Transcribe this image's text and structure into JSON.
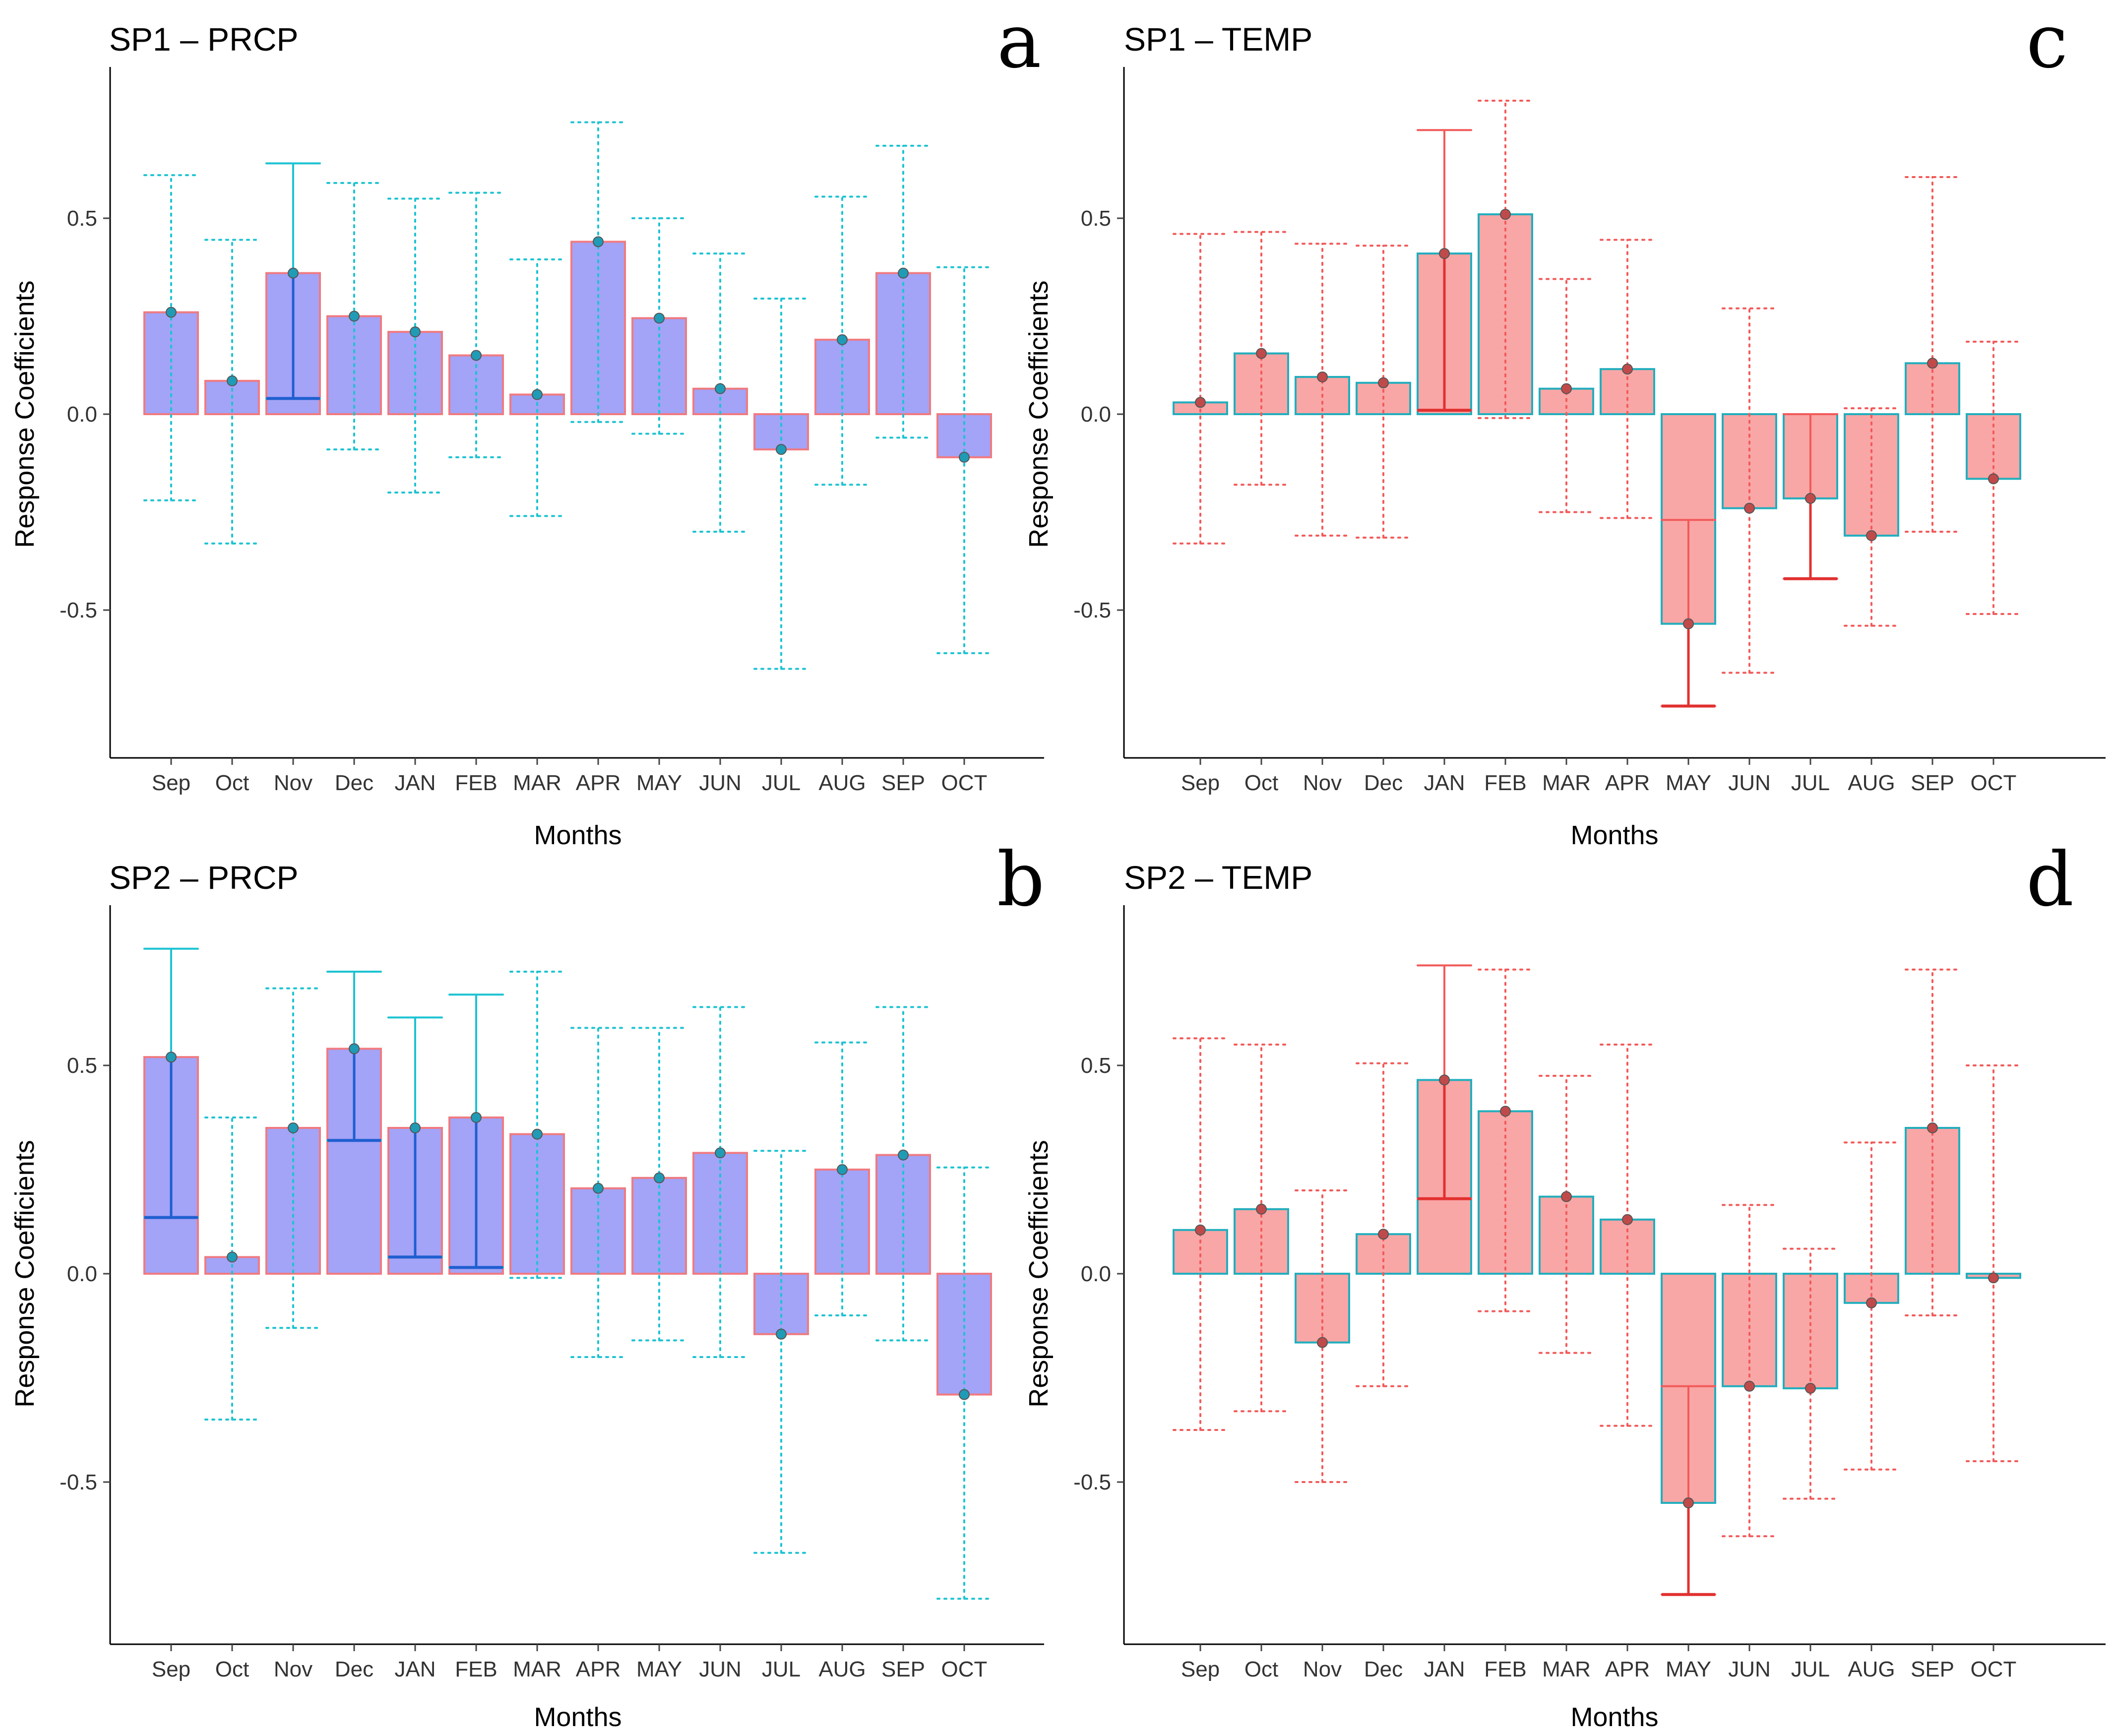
{
  "chart_data": [
    {
      "panel": "a",
      "type": "bar",
      "title": "SP1 – PRCP",
      "xlabel": "Months",
      "ylabel": "Response Coefficients",
      "categories": [
        "Sep",
        "Oct",
        "Nov",
        "Dec",
        "JAN",
        "FEB",
        "MAR",
        "APR",
        "MAY",
        "JUN",
        "JUL",
        "AUG",
        "SEP",
        "OCT"
      ],
      "values": [
        0.26,
        0.085,
        0.36,
        0.25,
        0.21,
        0.15,
        0.05,
        0.44,
        0.245,
        0.065,
        -0.09,
        0.19,
        0.36,
        -0.11
      ],
      "ci_low": [
        -0.22,
        -0.33,
        0.04,
        -0.09,
        -0.2,
        -0.11,
        -0.26,
        -0.02,
        -0.05,
        -0.3,
        -0.65,
        -0.18,
        -0.06,
        -0.61
      ],
      "ci_high": [
        0.61,
        0.445,
        0.64,
        0.59,
        0.55,
        0.565,
        0.395,
        0.745,
        0.5,
        0.41,
        0.295,
        0.555,
        0.685,
        0.375
      ],
      "significant": [
        false,
        false,
        true,
        false,
        false,
        false,
        false,
        false,
        false,
        false,
        false,
        false,
        false,
        false
      ],
      "yticks": [
        -0.5,
        0.0,
        0.5
      ],
      "ytick_labels": [
        "-0.5",
        "0.0",
        "0.5"
      ],
      "ylim": [
        -0.88,
        0.88
      ],
      "colors": {
        "bar_fill": "#a3a3f7",
        "bar_edge": "#f07a80",
        "ci": "#1cc3d2",
        "point": "#1f9bb6",
        "sig_inner": "#1f5fd0"
      }
    },
    {
      "panel": "b",
      "type": "bar",
      "title": "SP2 – PRCP",
      "xlabel": "Months",
      "ylabel": "Response Coefficients",
      "categories": [
        "Sep",
        "Oct",
        "Nov",
        "Dec",
        "JAN",
        "FEB",
        "MAR",
        "APR",
        "MAY",
        "JUN",
        "JUL",
        "AUG",
        "SEP",
        "OCT"
      ],
      "values": [
        0.52,
        0.04,
        0.35,
        0.54,
        0.35,
        0.375,
        0.335,
        0.205,
        0.23,
        0.29,
        -0.145,
        0.25,
        0.285,
        -0.29
      ],
      "ci_low": [
        0.135,
        -0.35,
        -0.13,
        0.32,
        0.04,
        0.015,
        -0.01,
        -0.2,
        -0.16,
        -0.2,
        -0.67,
        -0.1,
        -0.16,
        -0.78
      ],
      "ci_high": [
        0.78,
        0.375,
        0.685,
        0.725,
        0.615,
        0.67,
        0.725,
        0.59,
        0.59,
        0.64,
        0.295,
        0.555,
        0.64,
        0.255
      ],
      "significant": [
        true,
        false,
        false,
        true,
        true,
        true,
        false,
        false,
        false,
        false,
        false,
        false,
        false,
        false
      ],
      "yticks": [
        -0.5,
        0.0,
        0.5
      ],
      "ytick_labels": [
        "-0.5",
        "0.0",
        "0.5"
      ],
      "ylim": [
        -0.88,
        0.88
      ],
      "colors": {
        "bar_fill": "#a3a3f7",
        "bar_edge": "#f07a80",
        "ci": "#1cc3d2",
        "point": "#1f9bb6",
        "sig_inner": "#1f5fd0"
      }
    },
    {
      "panel": "c",
      "type": "bar",
      "title": "SP1 – TEMP",
      "xlabel": "Months",
      "ylabel": "Response Coefficients",
      "categories": [
        "Sep",
        "Oct",
        "Nov",
        "Dec",
        "JAN",
        "FEB",
        "MAR",
        "APR",
        "MAY",
        "JUN",
        "JUL",
        "AUG",
        "SEP",
        "OCT"
      ],
      "values": [
        0.03,
        0.155,
        0.095,
        0.08,
        0.41,
        0.51,
        0.065,
        0.115,
        -0.535,
        -0.24,
        -0.215,
        -0.31,
        0.13,
        -0.165
      ],
      "ci_low": [
        -0.33,
        -0.18,
        -0.31,
        -0.315,
        0.01,
        -0.01,
        -0.25,
        -0.265,
        -0.745,
        -0.66,
        -0.42,
        -0.54,
        -0.3,
        -0.51
      ],
      "ci_high": [
        0.46,
        0.465,
        0.435,
        0.43,
        0.725,
        0.8,
        0.345,
        0.445,
        -0.27,
        0.27,
        0.0,
        0.015,
        0.605,
        0.185
      ],
      "significant": [
        false,
        false,
        false,
        false,
        true,
        false,
        false,
        false,
        true,
        false,
        true,
        false,
        false,
        false
      ],
      "yticks": [
        -0.5,
        0.0,
        0.5
      ],
      "ytick_labels": [
        "-0.5",
        "0.0",
        "0.5"
      ],
      "ylim": [
        -0.88,
        0.88
      ],
      "colors": {
        "bar_fill": "#f9a6a6",
        "bar_edge": "#22aebd",
        "ci": "#f25a5a",
        "point": "#c04a4a",
        "sig_inner": "#e23030"
      }
    },
    {
      "panel": "d",
      "type": "bar",
      "title": "SP2 – TEMP",
      "xlabel": "Months",
      "ylabel": "Response Coefficients",
      "categories": [
        "Sep",
        "Oct",
        "Nov",
        "Dec",
        "JAN",
        "FEB",
        "MAR",
        "APR",
        "MAY",
        "JUN",
        "JUL",
        "AUG",
        "SEP",
        "OCT"
      ],
      "values": [
        0.105,
        0.155,
        -0.165,
        0.095,
        0.465,
        0.39,
        0.185,
        0.13,
        -0.55,
        -0.27,
        -0.275,
        -0.07,
        0.35,
        -0.01
      ],
      "ci_low": [
        -0.375,
        -0.33,
        -0.5,
        -0.27,
        0.18,
        -0.09,
        -0.19,
        -0.365,
        -0.77,
        -0.63,
        -0.54,
        -0.47,
        -0.1,
        -0.45
      ],
      "ci_high": [
        0.565,
        0.55,
        0.2,
        0.505,
        0.74,
        0.73,
        0.475,
        0.55,
        -0.27,
        0.165,
        0.06,
        0.315,
        0.73,
        0.5
      ],
      "significant": [
        false,
        false,
        false,
        false,
        true,
        false,
        false,
        false,
        true,
        false,
        false,
        false,
        false,
        false
      ],
      "yticks": [
        -0.5,
        0.0,
        0.5
      ],
      "ytick_labels": [
        "-0.5",
        "0.0",
        "0.5"
      ],
      "ylim": [
        -0.88,
        0.88
      ],
      "colors": {
        "bar_fill": "#f9a6a6",
        "bar_edge": "#22aebd",
        "ci": "#f25a5a",
        "point": "#c04a4a",
        "sig_inner": "#e23030"
      }
    }
  ]
}
